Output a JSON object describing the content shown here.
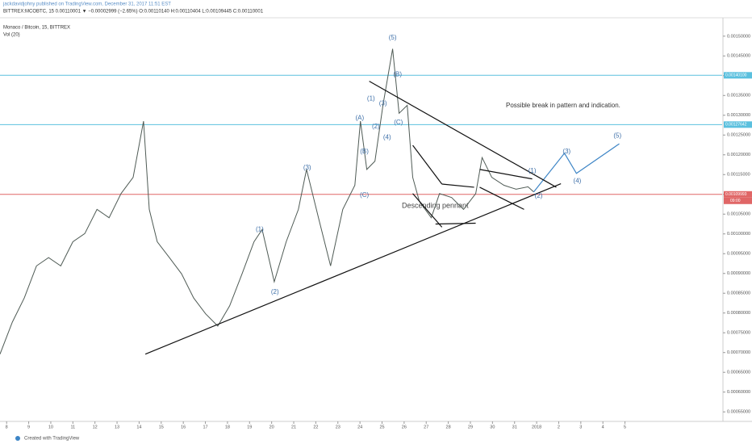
{
  "header": {
    "publisher": "jackdavidjohny published on TradingView.com, December 31, 2017 11:51 EST",
    "symbol_line": "BITTREX:MCOBTC, 15  0.00110001 ▼ −0.00002999 (−2.65%)  O:0.00110140 H:0.00110404 L:0.00109445 C:0.00110001",
    "pane_title": "Monaco / Bitcoin, 15, BITTREX",
    "volume_title": "Vol (20)"
  },
  "chart_data": {
    "type": "line",
    "annotations": [
      "Possible break in pattern and indication.",
      "Descending pennant"
    ],
    "x": [
      7.7,
      8.26,
      8.8,
      9.35,
      9.9,
      10.45,
      11.0,
      11.54,
      12.09,
      12.64,
      13.18,
      13.73,
      14.2,
      14.46,
      14.82,
      15.37,
      15.92,
      16.47,
      17.01,
      17.56,
      18.1,
      18.66,
      19.2,
      19.57,
      20.12,
      20.66,
      21.21,
      21.58,
      22.12,
      22.67,
      23.22,
      23.77,
      24.02,
      24.31,
      24.68,
      25.04,
      25.48,
      25.77,
      26.14,
      26.39,
      26.69,
      27.23,
      27.6,
      28.15,
      28.69,
      29.24,
      29.53,
      29.97,
      30.52,
      31.07,
      31.61,
      31.87
    ],
    "series": [
      {
        "color": "#4f5b55",
        "values": [
          0.000696,
          0.000777,
          0.000838,
          0.000919,
          0.00094,
          0.000919,
          0.00098,
          0.001001,
          0.001062,
          0.001041,
          0.001102,
          0.001143,
          0.001285,
          0.001062,
          0.00098,
          0.00094,
          0.000899,
          0.000838,
          0.000798,
          0.000767,
          0.000818,
          0.000899,
          0.00098,
          0.001011,
          0.000879,
          0.00098,
          0.001062,
          0.001163,
          0.001041,
          0.000919,
          0.001062,
          0.001123,
          0.001285,
          0.001163,
          0.001184,
          0.001325,
          0.001468,
          0.001305,
          0.001325,
          0.001143,
          0.001082,
          0.001041,
          0.001102,
          0.001092,
          0.001062,
          0.001102,
          0.001193,
          0.001143,
          0.001123,
          0.001113,
          0.001119,
          0.001106
        ]
      },
      {
        "color": "#3d85c6",
        "x": [
          31.87,
          33.26,
          33.8,
          35.74
        ],
        "values": [
          0.001106,
          0.001204,
          0.001153,
          0.001228
        ]
      }
    ],
    "trendlines": [
      [
        14.28,
        0.000696,
        33.1,
        0.001127
      ],
      [
        24.42,
        0.001386,
        32.89,
        0.001118
      ],
      [
        26.39,
        0.001224,
        27.71,
        0.001126
      ],
      [
        27.71,
        0.001126,
        29.17,
        0.001118
      ],
      [
        26.39,
        0.001102,
        27.71,
        0.001017
      ],
      [
        27.42,
        0.001025,
        29.24,
        0.001027
      ],
      [
        29.42,
        0.001163,
        31.8,
        0.001139
      ],
      [
        29.42,
        0.001118,
        31.43,
        0.001062
      ]
    ],
    "wave_labels": [
      {
        "text": "(1)",
        "x": 19.46,
        "y": 0.001011
      },
      {
        "text": "(2)",
        "x": 20.15,
        "y": 0.000853
      },
      {
        "text": "(3)",
        "x": 21.61,
        "y": 0.001167
      },
      {
        "text": "(A)",
        "x": 23.99,
        "y": 0.001293
      },
      {
        "text": "(B)",
        "x": 24.2,
        "y": 0.001208
      },
      {
        "text": "(C)",
        "x": 24.2,
        "y": 0.001098
      },
      {
        "text": "(1)",
        "x": 24.5,
        "y": 0.001342
      },
      {
        "text": "(2)",
        "x": 24.72,
        "y": 0.001271
      },
      {
        "text": "(3)",
        "x": 25.04,
        "y": 0.001329
      },
      {
        "text": "(4)",
        "x": 25.23,
        "y": 0.001244
      },
      {
        "text": "(5)",
        "x": 25.48,
        "y": 0.001496
      },
      {
        "text": "(B)",
        "x": 25.7,
        "y": 0.001403
      },
      {
        "text": "(C)",
        "x": 25.74,
        "y": 0.001281
      },
      {
        "text": "(1)",
        "x": 31.8,
        "y": 0.001159
      },
      {
        "text": "(2)",
        "x": 32.09,
        "y": 0.001096
      },
      {
        "text": "(3)",
        "x": 33.36,
        "y": 0.001208
      },
      {
        "text": "(4)",
        "x": 33.84,
        "y": 0.001133
      },
      {
        "text": "(5)",
        "x": 35.66,
        "y": 0.001248
      }
    ],
    "hlines": [
      {
        "value": 0.001401,
        "label": "0.00140100",
        "color": "#5bc0de"
      },
      {
        "value": 0.00127642,
        "label": "0.00127642",
        "color": "#5bc0de"
      },
      {
        "value": 0.00109993,
        "label": "0.00109993",
        "color": "#e06666"
      }
    ],
    "countdown": "09:00",
    "xlim": [
      7.7,
      40.4
    ],
    "xticks": [
      8,
      9,
      10,
      11,
      12,
      13,
      14,
      15,
      16,
      17,
      18,
      19,
      20,
      21,
      22,
      23,
      24,
      25,
      26,
      27,
      28,
      29,
      30,
      31,
      {
        "value": 32,
        "label": "2018"
      },
      {
        "value": 33,
        "label": "2"
      },
      {
        "value": 34,
        "label": "3"
      },
      {
        "value": 35,
        "label": "4"
      },
      {
        "value": 36,
        "label": "5"
      }
    ],
    "ylim": [
      0.00053,
      0.00152
    ],
    "yticks": [
      {
        "value": 0.0015,
        "label": "0.00150000"
      },
      {
        "value": 0.00145,
        "label": "0.00145000"
      },
      {
        "value": 0.0014,
        "label": "0.00140000"
      },
      {
        "value": 0.00135,
        "label": "0.00135000"
      },
      {
        "value": 0.0013,
        "label": "0.00130000"
      },
      {
        "value": 0.00125,
        "label": "0.00125000"
      },
      {
        "value": 0.0012,
        "label": "0.00120000"
      },
      {
        "value": 0.00115,
        "label": "0.00115000"
      },
      {
        "value": 0.0011,
        "label": "0.00110000"
      },
      {
        "value": 0.00105,
        "label": "0.00105000"
      },
      {
        "value": 0.001,
        "label": "0.00100000"
      },
      {
        "value": 0.00095,
        "label": "0.00095000"
      },
      {
        "value": 0.0009,
        "label": "0.00090000"
      },
      {
        "value": 0.00085,
        "label": "0.00085000"
      },
      {
        "value": 0.0008,
        "label": "0.00080000"
      },
      {
        "value": 0.00075,
        "label": "0.00075000"
      },
      {
        "value": 0.0007,
        "label": "0.00070000"
      },
      {
        "value": 0.00065,
        "label": "0.00065000"
      },
      {
        "value": 0.0006,
        "label": "0.00060000"
      },
      {
        "value": 0.00055,
        "label": "0.00055000"
      }
    ],
    "grid": false
  },
  "footer": "Created with TradingView"
}
